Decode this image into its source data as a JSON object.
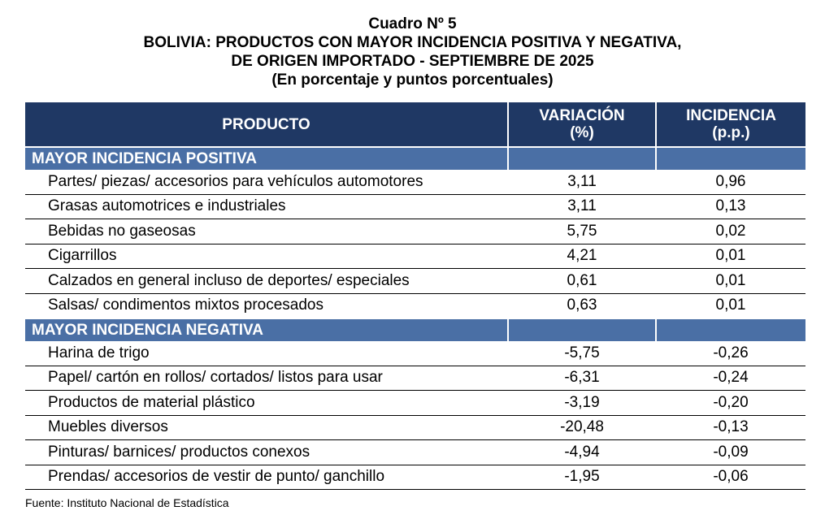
{
  "title": {
    "line1": "Cuadro Nº 5",
    "line2": "BOLIVIA: PRODUCTOS CON MAYOR INCIDENCIA POSITIVA Y NEGATIVA,",
    "line3": "DE ORIGEN IMPORTADO - SEPTIEMBRE DE 2025",
    "line4": "(En porcentaje y puntos porcentuales)"
  },
  "table": {
    "headers": {
      "product": "PRODUCTO",
      "variation_line1": "VARIACIÓN",
      "variation_line2": "(%)",
      "incidence_line1": "INCIDENCIA",
      "incidence_line2": "(p.p.)"
    },
    "sections": [
      {
        "label": "MAYOR INCIDENCIA POSITIVA",
        "rows": [
          {
            "product": "Partes/ piezas/ accesorios para vehículos automotores",
            "variation": "3,11",
            "incidence": "0,96"
          },
          {
            "product": "Grasas automotrices e industriales",
            "variation": "3,11",
            "incidence": "0,13"
          },
          {
            "product": "Bebidas no gaseosas",
            "variation": "5,75",
            "incidence": "0,02"
          },
          {
            "product": "Cigarrillos",
            "variation": "4,21",
            "incidence": "0,01"
          },
          {
            "product": "Calzados en general incluso de deportes/ especiales",
            "variation": "0,61",
            "incidence": "0,01"
          },
          {
            "product": "Salsas/ condimentos mixtos procesados",
            "variation": "0,63",
            "incidence": "0,01"
          }
        ]
      },
      {
        "label": "MAYOR INCIDENCIA NEGATIVA",
        "rows": [
          {
            "product": "Harina de trigo",
            "variation": "-5,75",
            "incidence": "-0,26"
          },
          {
            "product": "Papel/ cartón en rollos/ cortados/ listos para usar",
            "variation": "-6,31",
            "incidence": "-0,24"
          },
          {
            "product": "Productos de material plástico",
            "variation": "-3,19",
            "incidence": "-0,20"
          },
          {
            "product": "Muebles diversos",
            "variation": "-20,48",
            "incidence": "-0,13"
          },
          {
            "product": "Pinturas/ barnices/ productos conexos",
            "variation": "-4,94",
            "incidence": "-0,09"
          },
          {
            "product": "Prendas/ accesorios de vestir de punto/ ganchillo",
            "variation": "-1,95",
            "incidence": "-0,06"
          }
        ]
      }
    ]
  },
  "source": "Fuente: Instituto Nacional de Estadística",
  "colors": {
    "header_bg": "#1f3864",
    "section_bg": "#4a6fa5",
    "header_text": "#ffffff"
  }
}
